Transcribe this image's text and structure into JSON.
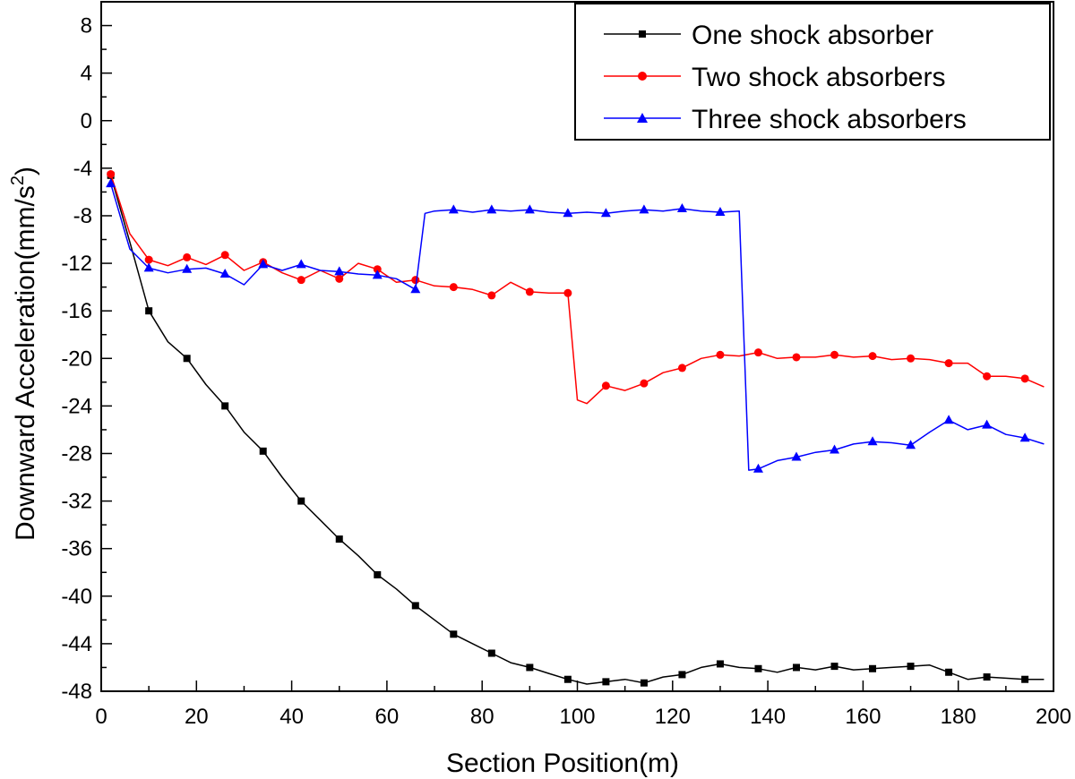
{
  "chart_data": {
    "type": "line",
    "xlabel": "Section Position(m)",
    "ylabel": "Downward Acceleration(mm/s",
    "ylabel_superscript": "2",
    "ylabel_suffix": ")",
    "xlim": [
      0,
      200
    ],
    "ylim": [
      -48,
      10
    ],
    "xticks": [
      0,
      20,
      40,
      60,
      80,
      100,
      120,
      140,
      160,
      180,
      200
    ],
    "yticks": [
      8,
      4,
      0,
      -4,
      -8,
      -12,
      -16,
      -20,
      -24,
      -28,
      -32,
      -36,
      -40,
      -44,
      -48
    ],
    "grid": false,
    "legend_position": "top-right",
    "series": [
      {
        "name": "One shock absorber",
        "color": "#000000",
        "marker": "square",
        "x": [
          2,
          6,
          10,
          14,
          18,
          22,
          26,
          30,
          34,
          38,
          42,
          46,
          50,
          54,
          58,
          62,
          66,
          70,
          74,
          78,
          82,
          86,
          90,
          94,
          98,
          102,
          106,
          110,
          114,
          118,
          122,
          126,
          130,
          134,
          138,
          142,
          146,
          150,
          154,
          158,
          162,
          166,
          170,
          174,
          178,
          182,
          186,
          190,
          194,
          198
        ],
        "y": [
          -4.6,
          -10.2,
          -16.0,
          -18.6,
          -20.0,
          -22.2,
          -24.0,
          -26.2,
          -27.8,
          -30.0,
          -32.0,
          -33.6,
          -35.2,
          -36.6,
          -38.2,
          -39.4,
          -40.8,
          -42.0,
          -43.2,
          -44.0,
          -44.8,
          -45.6,
          -46.0,
          -46.5,
          -47.0,
          -47.4,
          -47.2,
          -47.0,
          -47.3,
          -46.8,
          -46.6,
          -46.0,
          -45.7,
          -46.0,
          -46.1,
          -46.4,
          -46.0,
          -46.2,
          -45.9,
          -46.2,
          -46.1,
          -46.0,
          -45.9,
          -45.8,
          -46.4,
          -47.0,
          -46.8,
          -46.9,
          -47.0,
          -47.0
        ],
        "marker_x": [
          2,
          10,
          18,
          26,
          34,
          42,
          50,
          58,
          66,
          74,
          82,
          90,
          98,
          106,
          114,
          122,
          130,
          138,
          146,
          154,
          162,
          170,
          178,
          186,
          194
        ],
        "marker_y": [
          -4.6,
          -16.0,
          -20.0,
          -24.0,
          -27.8,
          -32.0,
          -35.2,
          -38.2,
          -40.8,
          -43.2,
          -44.8,
          -46.0,
          -47.0,
          -47.2,
          -47.3,
          -46.6,
          -45.7,
          -46.1,
          -46.0,
          -45.9,
          -46.1,
          -45.9,
          -46.4,
          -46.8,
          -47.0
        ]
      },
      {
        "name": "Two shock absorbers",
        "color": "#ff0000",
        "marker": "circle",
        "x": [
          2,
          6,
          10,
          14,
          18,
          22,
          26,
          30,
          34,
          38,
          42,
          46,
          50,
          54,
          58,
          62,
          66,
          70,
          74,
          78,
          82,
          86,
          90,
          94,
          98,
          100,
          102,
          106,
          110,
          114,
          118,
          122,
          126,
          130,
          134,
          138,
          142,
          146,
          150,
          154,
          158,
          162,
          166,
          170,
          174,
          178,
          182,
          186,
          190,
          194,
          198
        ],
        "y": [
          -4.5,
          -9.5,
          -11.7,
          -12.2,
          -11.5,
          -12.1,
          -11.3,
          -12.6,
          -11.9,
          -12.8,
          -13.4,
          -12.6,
          -13.3,
          -12.0,
          -12.5,
          -13.6,
          -13.4,
          -13.9,
          -14.0,
          -14.2,
          -14.7,
          -13.6,
          -14.4,
          -14.5,
          -14.5,
          -23.5,
          -23.8,
          -22.3,
          -22.7,
          -22.1,
          -21.2,
          -20.8,
          -20.0,
          -19.7,
          -19.8,
          -19.5,
          -20.0,
          -19.9,
          -19.9,
          -19.7,
          -19.9,
          -19.8,
          -20.1,
          -20.0,
          -20.1,
          -20.4,
          -20.4,
          -21.5,
          -21.5,
          -21.7,
          -22.4
        ],
        "marker_x": [
          2,
          10,
          18,
          26,
          34,
          42,
          50,
          58,
          66,
          74,
          82,
          90,
          98,
          106,
          114,
          122,
          130,
          138,
          146,
          154,
          162,
          170,
          178,
          186,
          194
        ],
        "marker_y": [
          -4.5,
          -11.7,
          -11.5,
          -11.3,
          -11.9,
          -13.4,
          -13.3,
          -12.5,
          -13.4,
          -14.0,
          -14.7,
          -14.4,
          -14.5,
          -22.3,
          -22.1,
          -20.8,
          -19.7,
          -19.5,
          -19.9,
          -19.7,
          -19.8,
          -20.0,
          -20.4,
          -21.5,
          -21.7
        ]
      },
      {
        "name": "Three shock absorbers",
        "color": "#0000ff",
        "marker": "triangle",
        "x": [
          2,
          6,
          10,
          14,
          18,
          22,
          26,
          30,
          34,
          38,
          42,
          46,
          50,
          54,
          58,
          62,
          66,
          68,
          70,
          74,
          78,
          82,
          86,
          90,
          94,
          98,
          102,
          106,
          110,
          114,
          118,
          122,
          126,
          130,
          134,
          136,
          138,
          142,
          146,
          150,
          154,
          158,
          162,
          166,
          170,
          174,
          178,
          182,
          186,
          190,
          194,
          198
        ],
        "y": [
          -5.3,
          -10.8,
          -12.4,
          -12.8,
          -12.5,
          -12.4,
          -12.9,
          -13.8,
          -12.1,
          -12.6,
          -12.1,
          -12.6,
          -12.7,
          -12.9,
          -13.0,
          -13.3,
          -14.2,
          -7.8,
          -7.6,
          -7.5,
          -7.7,
          -7.5,
          -7.6,
          -7.5,
          -7.7,
          -7.8,
          -7.7,
          -7.8,
          -7.6,
          -7.5,
          -7.6,
          -7.4,
          -7.6,
          -7.7,
          -7.6,
          -29.4,
          -29.3,
          -28.6,
          -28.3,
          -27.9,
          -27.7,
          -27.2,
          -27.0,
          -27.1,
          -27.3,
          -26.2,
          -25.2,
          -26.0,
          -25.6,
          -26.4,
          -26.7,
          -27.2
        ],
        "marker_x": [
          2,
          10,
          18,
          26,
          34,
          42,
          50,
          58,
          66,
          74,
          82,
          90,
          98,
          106,
          114,
          122,
          130,
          138,
          146,
          154,
          162,
          170,
          178,
          186,
          194
        ],
        "marker_y": [
          -5.3,
          -12.4,
          -12.5,
          -12.9,
          -12.1,
          -12.1,
          -12.7,
          -13.0,
          -14.2,
          -7.5,
          -7.5,
          -7.5,
          -7.8,
          -7.8,
          -7.5,
          -7.4,
          -7.7,
          -29.3,
          -28.3,
          -27.7,
          -27.0,
          -27.3,
          -25.2,
          -25.6,
          -26.7
        ]
      }
    ]
  }
}
